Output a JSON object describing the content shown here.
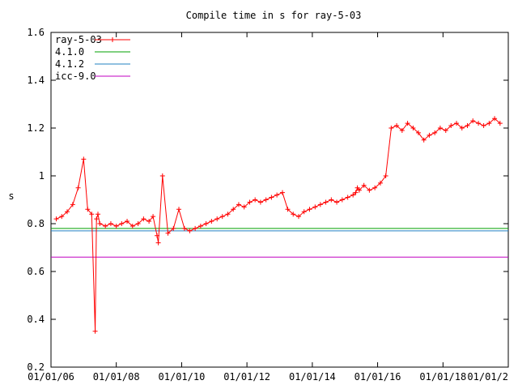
{
  "chart_data": {
    "type": "line",
    "title": "Compile time in s for ray-5-03",
    "xlabel": "",
    "ylabel": "s",
    "xlim": [
      "2006-01-01",
      "2020-01-01"
    ],
    "ylim": [
      0.2,
      1.6
    ],
    "yticks": [
      0.2,
      0.4,
      0.6,
      0.8,
      1,
      1.2,
      1.4,
      1.6
    ],
    "ytick_labels": [
      "0.2",
      "0.4",
      "0.6",
      "0.8",
      "1",
      "1.2",
      "1.4",
      "1.6"
    ],
    "xticks": [
      "2006-01-01",
      "2008-01-01",
      "2010-01-01",
      "2012-01-01",
      "2014-01-01",
      "2016-01-01",
      "2018-01-01",
      "2020-01-01"
    ],
    "xtick_labels": [
      "01/01/06",
      "01/01/08",
      "01/01/10",
      "01/01/12",
      "01/01/14",
      "01/01/16",
      "01/01/18",
      "01/01/2"
    ],
    "grid": false,
    "legend": "top-left",
    "series": [
      {
        "name": "ray-5-03",
        "color": "#ff0000",
        "marker": "plus",
        "x": [
          "2006-03-01",
          "2006-05-01",
          "2006-07-01",
          "2006-09-01",
          "2006-11-01",
          "2007-01-01",
          "2007-02-15",
          "2007-04-01",
          "2007-05-10",
          "2007-05-25",
          "2007-06-10",
          "2007-07-01",
          "2007-09-01",
          "2007-11-01",
          "2008-01-01",
          "2008-03-01",
          "2008-05-01",
          "2008-07-01",
          "2008-09-01",
          "2008-11-01",
          "2009-01-01",
          "2009-02-15",
          "2009-04-01",
          "2009-04-15",
          "2009-06-01",
          "2009-08-01",
          "2009-10-01",
          "2009-12-01",
          "2010-02-01",
          "2010-04-01",
          "2010-06-01",
          "2010-08-01",
          "2010-10-01",
          "2010-12-01",
          "2011-02-01",
          "2011-04-01",
          "2011-06-01",
          "2011-08-01",
          "2011-10-01",
          "2011-12-01",
          "2012-02-01",
          "2012-04-01",
          "2012-06-01",
          "2012-08-01",
          "2012-10-01",
          "2012-12-01",
          "2013-02-01",
          "2013-04-01",
          "2013-06-01",
          "2013-08-01",
          "2013-10-01",
          "2013-12-01",
          "2014-02-01",
          "2014-04-01",
          "2014-06-01",
          "2014-08-01",
          "2014-10-01",
          "2014-12-01",
          "2015-02-01",
          "2015-04-01",
          "2015-05-01",
          "2015-05-20",
          "2015-06-10",
          "2015-08-01",
          "2015-10-01",
          "2015-12-01",
          "2016-02-01",
          "2016-04-01",
          "2016-06-01",
          "2016-08-01",
          "2016-10-01",
          "2016-12-01",
          "2017-02-01",
          "2017-04-01",
          "2017-06-01",
          "2017-08-01",
          "2017-10-01",
          "2017-12-01",
          "2018-02-01",
          "2018-04-01",
          "2018-06-01",
          "2018-08-01",
          "2018-10-01",
          "2018-12-01",
          "2019-02-01",
          "2019-04-01",
          "2019-06-01",
          "2019-08-01",
          "2019-10-01"
        ],
        "y": [
          0.82,
          0.83,
          0.85,
          0.88,
          0.95,
          1.07,
          0.86,
          0.84,
          0.35,
          0.82,
          0.84,
          0.8,
          0.79,
          0.8,
          0.79,
          0.8,
          0.81,
          0.79,
          0.8,
          0.82,
          0.81,
          0.83,
          0.75,
          0.72,
          1.0,
          0.76,
          0.78,
          0.86,
          0.78,
          0.77,
          0.78,
          0.79,
          0.8,
          0.81,
          0.82,
          0.83,
          0.84,
          0.86,
          0.88,
          0.87,
          0.89,
          0.9,
          0.89,
          0.9,
          0.91,
          0.92,
          0.93,
          0.86,
          0.84,
          0.83,
          0.85,
          0.86,
          0.87,
          0.88,
          0.89,
          0.9,
          0.89,
          0.9,
          0.91,
          0.92,
          0.93,
          0.95,
          0.94,
          0.96,
          0.94,
          0.95,
          0.97,
          1.0,
          1.2,
          1.21,
          1.19,
          1.22,
          1.2,
          1.18,
          1.15,
          1.17,
          1.18,
          1.2,
          1.19,
          1.21,
          1.22,
          1.2,
          1.21,
          1.23,
          1.22,
          1.21,
          1.22,
          1.24,
          1.22
        ]
      },
      {
        "name": "4.1.0",
        "color": "#00a000",
        "x": [
          "2006-01-01",
          "2020-01-01"
        ],
        "y": [
          0.78,
          0.78
        ]
      },
      {
        "name": "4.1.2",
        "color": "#2080c0",
        "x": [
          "2006-01-01",
          "2020-01-01"
        ],
        "y": [
          0.77,
          0.77
        ]
      },
      {
        "name": "icc-9.0",
        "color": "#c000c0",
        "x": [
          "2006-01-01",
          "2020-01-01"
        ],
        "y": [
          0.66,
          0.66
        ]
      }
    ]
  }
}
